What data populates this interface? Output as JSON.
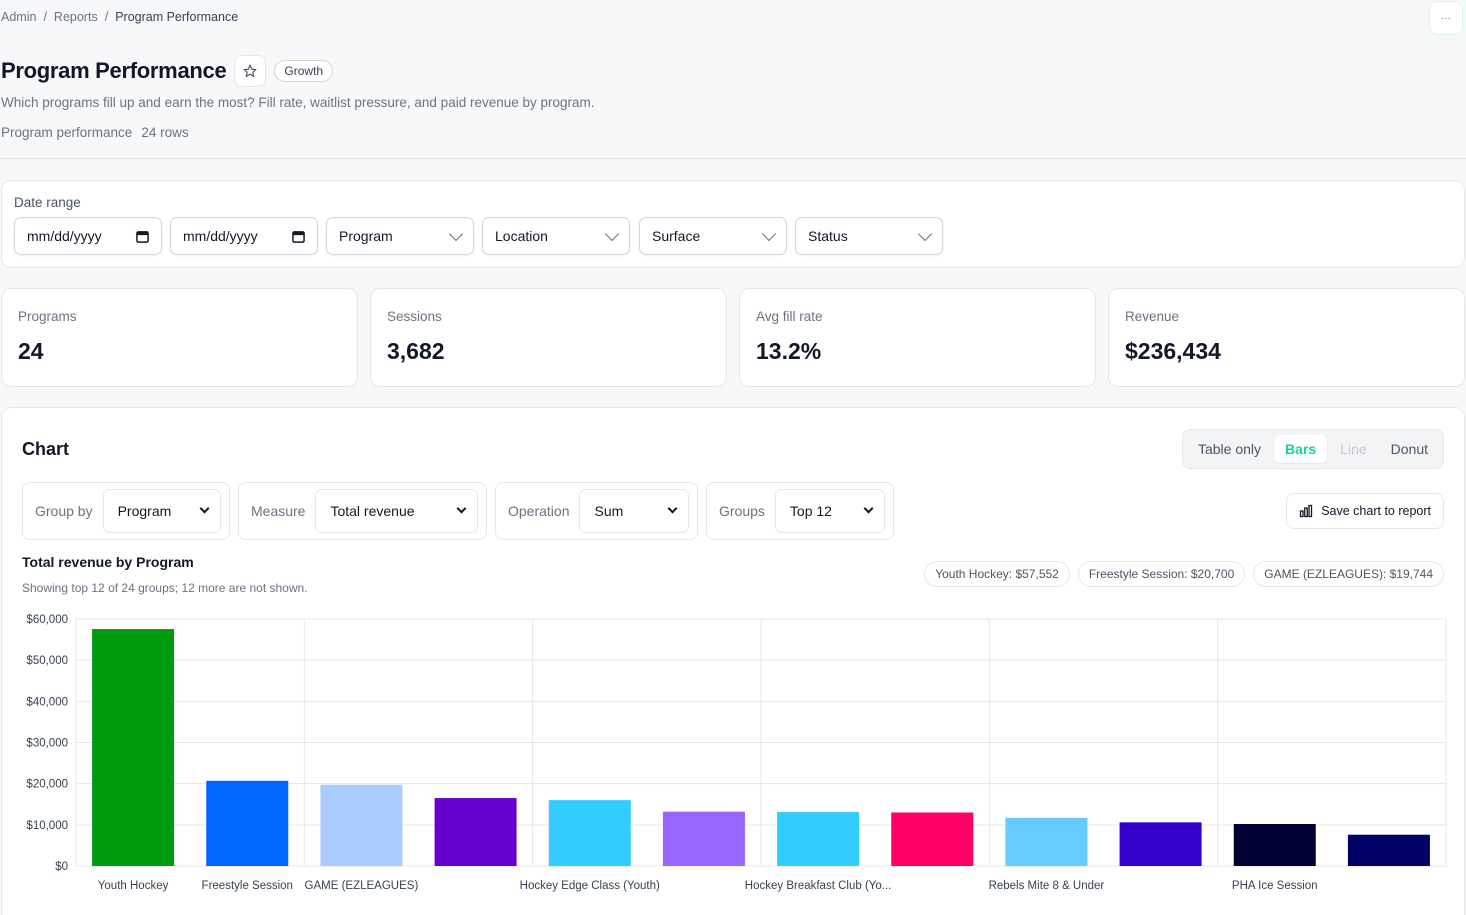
{
  "breadcrumb": {
    "items": [
      "Admin",
      "Reports",
      "Program Performance"
    ],
    "separator": "/"
  },
  "header": {
    "title": "Program Performance",
    "badge": "Growth",
    "subtitle": "Which programs fill up and earn the most? Fill rate, waitlist pressure, and paid revenue by program.",
    "meta_label": "Program performance",
    "meta_rows": "24 rows"
  },
  "corner_button": "···",
  "filters": {
    "date_range_label": "Date range",
    "start_date_placeholder": "mm/dd/yyyy",
    "end_date_placeholder": "mm/dd/yyyy",
    "program": "Program",
    "location": "Location",
    "surface": "Surface",
    "status": "Status"
  },
  "kpis": [
    {
      "label": "Programs",
      "value": "24"
    },
    {
      "label": "Sessions",
      "value": "3,682"
    },
    {
      "label": "Avg fill rate",
      "value": "13.2%"
    },
    {
      "label": "Revenue",
      "value": "$236,434"
    }
  ],
  "chart_panel": {
    "heading": "Chart",
    "view_options": [
      "Table only",
      "Bars",
      "Line",
      "Donut"
    ],
    "active_view": "Bars",
    "group_by_label": "Group by",
    "group_by_value": "Program",
    "measure_label": "Measure",
    "measure_value": "Total revenue",
    "operation_label": "Operation",
    "operation_value": "Sum",
    "groups_label": "Groups",
    "groups_value": "Top 12",
    "save_button": "Save chart to report",
    "plot_title": "Total revenue by Program",
    "plot_note": "Showing top 12 of 24 groups; 12 more are not shown.",
    "pills": [
      "Youth Hockey: $57,552",
      "Freestyle Session: $20,700",
      "GAME (EZLEAGUES): $19,744"
    ]
  },
  "colors": {
    "accent": "#10d88f",
    "grid": "#e5e7eb"
  },
  "chart_data": {
    "type": "bar",
    "title": "Total revenue by Program",
    "categories": [
      "Youth Hockey",
      "Freestyle Session",
      "GAME (EZLEAGUES)",
      "",
      "Hockey Edge Class (Youth)",
      "",
      "Hockey Breakfast Club (Yo...",
      "",
      "Rebels Mite 8 & Under",
      "",
      "PHA Ice Session",
      ""
    ],
    "values": [
      57552,
      20700,
      19744,
      16500,
      16000,
      13200,
      13100,
      13000,
      11700,
      10600,
      10200,
      7600
    ],
    "bar_colors": [
      "#009a0f",
      "#0066ff",
      "#aaccff",
      "#6600cc",
      "#33ccff",
      "#9966ff",
      "#33ccff",
      "#ff0066",
      "#66ccff",
      "#3300cc",
      "#000033",
      "#000066"
    ],
    "yticks": [
      "$0",
      "$10,000",
      "$20,000",
      "$30,000",
      "$40,000",
      "$50,000",
      "$60,000"
    ],
    "ylim": [
      0,
      60000
    ],
    "grid": true
  }
}
